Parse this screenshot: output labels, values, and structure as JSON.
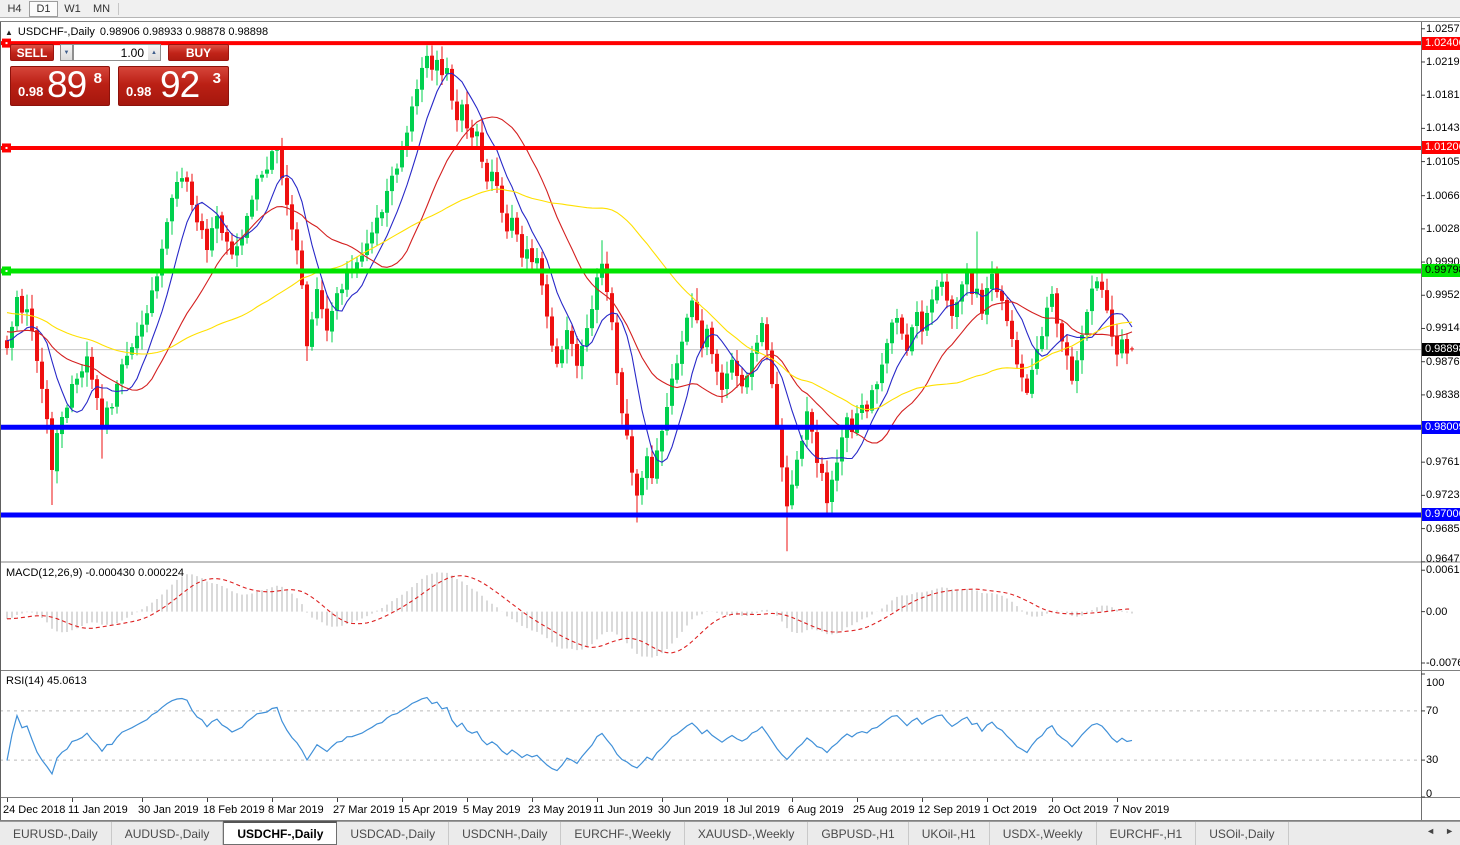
{
  "toolbar": {
    "timeframes": [
      {
        "label": "H4",
        "active": false
      },
      {
        "label": "D1",
        "active": true
      },
      {
        "label": "W1",
        "active": false
      },
      {
        "label": "MN",
        "active": false
      }
    ]
  },
  "title": {
    "collapse_arrow": "▲",
    "symbol": "USDCHF-,Daily",
    "ohlc": "0.98906 0.98933 0.98878 0.98898"
  },
  "trade_panel": {
    "sell_label": "SELL",
    "buy_label": "BUY",
    "volume": "1.00",
    "spin_down": "▼",
    "spin_up": "▲",
    "sell_price": {
      "small": "0.98",
      "big": "89",
      "sup": "8"
    },
    "buy_price": {
      "small": "0.98",
      "big": "92",
      "sup": "3"
    }
  },
  "price_axis": {
    "ticks": [
      "1.02570",
      "1.02190",
      "1.01810",
      "1.01430",
      "1.01050",
      "1.00660",
      "1.00280",
      "0.99900",
      "0.99520",
      "0.99140",
      "0.98760",
      "0.98380",
      "0.98000",
      "0.97610",
      "0.97230",
      "0.96850",
      "0.96470"
    ]
  },
  "macd_panel": {
    "label": "MACD(12,26,9)",
    "values": "-0.000430 0.000224",
    "axis_ticks": [
      {
        "value": 0.00613,
        "text": "0.00613"
      },
      {
        "value": 0.0,
        "text": "0.00"
      },
      {
        "value": -0.00761,
        "text": "-0.00761"
      }
    ]
  },
  "rsi_panel": {
    "label": "RSI(14)",
    "value": "45.0613",
    "axis_ticks": [
      {
        "value": 100,
        "text": "100"
      },
      {
        "value": 70,
        "text": "70"
      },
      {
        "value": 30,
        "text": "30"
      },
      {
        "value": 0,
        "text": "0"
      }
    ]
  },
  "date_axis": {
    "labels": [
      {
        "i": 0,
        "text": "24 Dec 2018"
      },
      {
        "i": 13,
        "text": "11 Jan 2019"
      },
      {
        "i": 27,
        "text": "30 Jan 2019"
      },
      {
        "i": 40,
        "text": "18 Feb 2019"
      },
      {
        "i": 53,
        "text": "8 Mar 2019"
      },
      {
        "i": 66,
        "text": "27 Mar 2019"
      },
      {
        "i": 79,
        "text": "15 Apr 2019"
      },
      {
        "i": 92,
        "text": "5 May 2019"
      },
      {
        "i": 105,
        "text": "23 May 2019"
      },
      {
        "i": 118,
        "text": "11 Jun 2019"
      },
      {
        "i": 131,
        "text": "30 Jun 2019"
      },
      {
        "i": 144,
        "text": "18 Jul 2019"
      },
      {
        "i": 157,
        "text": "6 Aug 2019"
      },
      {
        "i": 170,
        "text": "25 Aug 2019"
      },
      {
        "i": 183,
        "text": "12 Sep 2019"
      },
      {
        "i": 196,
        "text": "1 Oct 2019"
      },
      {
        "i": 209,
        "text": "20 Oct 2019"
      },
      {
        "i": 222,
        "text": "7 Nov 2019"
      }
    ]
  },
  "tabs": {
    "items": [
      {
        "label": "EURUSD-,Daily",
        "active": false
      },
      {
        "label": "AUDUSD-,Daily",
        "active": false
      },
      {
        "label": "USDCHF-,Daily",
        "active": true
      },
      {
        "label": "USDCAD-,Daily",
        "active": false
      },
      {
        "label": "USDCNH-,Daily",
        "active": false
      },
      {
        "label": "EURCHF-,Weekly",
        "active": false
      },
      {
        "label": "XAUUSD-,Weekly",
        "active": false
      },
      {
        "label": "GBPUSD-,H1",
        "active": false
      },
      {
        "label": "UKOil-,H1",
        "active": false
      },
      {
        "label": "USDX-,Weekly",
        "active": false
      },
      {
        "label": "EURCHF-,H1",
        "active": false
      },
      {
        "label": "USOil-,Daily",
        "active": false
      }
    ],
    "scroll_left": "◄",
    "scroll_right": "►"
  },
  "colors": {
    "bull": "#00d04e",
    "bear": "#ee1010",
    "ma_fast": "#2828c8",
    "ma_mid": "#d42020",
    "ma_slow": "#ffe000",
    "level_red": "#ff0000",
    "level_green": "#00e400",
    "level_blue": "#0000ff",
    "current_line": "#c8c8c8",
    "current_badge_bg": "#000000",
    "macd_bar": "#b4b4b4",
    "macd_signal": "#dd2222",
    "rsi_line": "#4090d8",
    "rsi_dash": "#bbbbbb"
  },
  "chart_data": {
    "type": "candlestick",
    "symbol": "USDCHF",
    "timeframe": "Daily",
    "bars": 226,
    "y_range": [
      0.96479,
      1.02636
    ],
    "current_price": {
      "value": 0.98898,
      "label": "0.98898"
    },
    "last_candle": {
      "open": 0.98906,
      "high": 0.98933,
      "low": 0.98878,
      "close": 0.98898
    },
    "levels": [
      {
        "value": 1.02406,
        "label": "1.02406",
        "color": "#ff0000",
        "role": "resistance",
        "width": 4,
        "marker": true,
        "text": "#ffffff"
      },
      {
        "value": 1.01206,
        "label": "1.01206",
        "color": "#ff0000",
        "role": "resistance",
        "width": 4,
        "marker": true,
        "text": "#ffffff"
      },
      {
        "value": 0.99798,
        "label": "0.99798",
        "color": "#00e400",
        "role": "pivot",
        "width": 5,
        "marker": true,
        "text": "#000000"
      },
      {
        "value": 0.98009,
        "label": "0.98009",
        "color": "#0000ff",
        "role": "support",
        "width": 5,
        "marker": false,
        "text": "#ffffff"
      },
      {
        "value": 0.97006,
        "label": "0.97006",
        "color": "#0000ff",
        "role": "support",
        "width": 5,
        "marker": false,
        "text": "#ffffff"
      }
    ],
    "moving_averages": [
      {
        "period": 8,
        "color": "#2828c8"
      },
      {
        "period": 21,
        "color": "#d42020"
      },
      {
        "period": 50,
        "color": "#ffe000"
      }
    ],
    "macd": {
      "fast": 12,
      "slow": 26,
      "signal": 9,
      "value": -0.00043,
      "signal_value": 0.000224,
      "scale_top": 0.0072,
      "scale_bottom": -0.0085
    },
    "rsi": {
      "period": 14,
      "value": 45.0613,
      "levels": [
        70,
        30
      ]
    },
    "close_anchors": [
      [
        0,
        0.989
      ],
      [
        2,
        0.9945
      ],
      [
        4,
        0.9928
      ],
      [
        6,
        0.988
      ],
      [
        8,
        0.9808
      ],
      [
        9,
        0.9752
      ],
      [
        10,
        0.9788
      ],
      [
        12,
        0.983
      ],
      [
        14,
        0.9862
      ],
      [
        16,
        0.9878
      ],
      [
        18,
        0.9838
      ],
      [
        19,
        0.98
      ],
      [
        21,
        0.9832
      ],
      [
        23,
        0.9868
      ],
      [
        25,
        0.9898
      ],
      [
        27,
        0.9918
      ],
      [
        29,
        0.9952
      ],
      [
        31,
        1.0
      ],
      [
        33,
        1.006
      ],
      [
        35,
        1.0092
      ],
      [
        37,
        1.0058
      ],
      [
        39,
        1.0022
      ],
      [
        40,
        1.0005
      ],
      [
        42,
        1.0038
      ],
      [
        44,
        1.001
      ],
      [
        45,
        0.9992
      ],
      [
        47,
        1.0025
      ],
      [
        49,
        1.006
      ],
      [
        51,
        1.0095
      ],
      [
        53,
        1.0112
      ],
      [
        54,
        1.0118
      ],
      [
        55,
        1.0088
      ],
      [
        56,
        1.0058
      ],
      [
        57,
        1.0028
      ],
      [
        58,
        1.0
      ],
      [
        59,
        0.9958
      ],
      [
        60,
        0.9898
      ],
      [
        61,
        0.9928
      ],
      [
        62,
        0.9955
      ],
      [
        63,
        0.9932
      ],
      [
        64,
        0.9908
      ],
      [
        65,
        0.993
      ],
      [
        66,
        0.995
      ],
      [
        68,
        0.9975
      ],
      [
        70,
        0.9992
      ],
      [
        72,
        1.0012
      ],
      [
        74,
        1.004
      ],
      [
        76,
        1.0068
      ],
      [
        78,
        1.0098
      ],
      [
        79,
        1.012
      ],
      [
        80,
        1.0142
      ],
      [
        81,
        1.0166
      ],
      [
        82,
        1.019
      ],
      [
        83,
        1.0212
      ],
      [
        84,
        1.0226
      ],
      [
        85,
        1.0205
      ],
      [
        86,
        1.022
      ],
      [
        87,
        1.0196
      ],
      [
        88,
        1.021
      ],
      [
        89,
        1.0182
      ],
      [
        90,
        1.0158
      ],
      [
        91,
        1.0172
      ],
      [
        92,
        1.0148
      ],
      [
        93,
        1.0125
      ],
      [
        94,
        1.014
      ],
      [
        95,
        1.0112
      ],
      [
        96,
        1.0088
      ],
      [
        97,
        1.01
      ],
      [
        98,
        1.0072
      ],
      [
        99,
        1.0048
      ],
      [
        100,
        1.0025
      ],
      [
        101,
        1.0042
      ],
      [
        102,
        1.0018
      ],
      [
        103,
        0.9998
      ],
      [
        104,
        1.0012
      ],
      [
        105,
        0.9988
      ],
      [
        106,
        0.9998
      ],
      [
        107,
        0.9965
      ],
      [
        108,
        0.993
      ],
      [
        109,
        0.9895
      ],
      [
        110,
        0.9868
      ],
      [
        111,
        0.989
      ],
      [
        112,
        0.9912
      ],
      [
        113,
        0.9892
      ],
      [
        114,
        0.987
      ],
      [
        115,
        0.989
      ],
      [
        116,
        0.9915
      ],
      [
        117,
        0.9942
      ],
      [
        118,
        0.997
      ],
      [
        119,
        0.9996
      ],
      [
        120,
        0.9958
      ],
      [
        121,
        0.9915
      ],
      [
        122,
        0.987
      ],
      [
        123,
        0.9825
      ],
      [
        124,
        0.9785
      ],
      [
        125,
        0.9748
      ],
      [
        126,
        0.972
      ],
      [
        127,
        0.9748
      ],
      [
        128,
        0.9775
      ],
      [
        129,
        0.975
      ],
      [
        130,
        0.9776
      ],
      [
        132,
        0.9828
      ],
      [
        134,
        0.988
      ],
      [
        136,
        0.9932
      ],
      [
        137,
        0.9946
      ],
      [
        138,
        0.992
      ],
      [
        139,
        0.9895
      ],
      [
        140,
        0.9906
      ],
      [
        141,
        0.9886
      ],
      [
        142,
        0.9866
      ],
      [
        143,
        0.9848
      ],
      [
        144,
        0.9866
      ],
      [
        145,
        0.9884
      ],
      [
        146,
        0.9866
      ],
      [
        147,
        0.9844
      ],
      [
        148,
        0.986
      ],
      [
        150,
        0.99
      ],
      [
        151,
        0.992
      ],
      [
        152,
        0.9888
      ],
      [
        153,
        0.9846
      ],
      [
        154,
        0.9798
      ],
      [
        155,
        0.9748
      ],
      [
        156,
        0.9706
      ],
      [
        157,
        0.9736
      ],
      [
        158,
        0.9764
      ],
      [
        159,
        0.9792
      ],
      [
        160,
        0.9814
      ],
      [
        161,
        0.979
      ],
      [
        162,
        0.9766
      ],
      [
        163,
        0.9742
      ],
      [
        164,
        0.9718
      ],
      [
        165,
        0.974
      ],
      [
        166,
        0.9764
      ],
      [
        167,
        0.9788
      ],
      [
        168,
        0.981
      ],
      [
        169,
        0.9792
      ],
      [
        170,
        0.9812
      ],
      [
        171,
        0.983
      ],
      [
        172,
        0.9814
      ],
      [
        173,
        0.9836
      ],
      [
        174,
        0.9858
      ],
      [
        175,
        0.9878
      ],
      [
        176,
        0.9898
      ],
      [
        177,
        0.9916
      ],
      [
        178,
        0.9932
      ],
      [
        179,
        0.9912
      ],
      [
        180,
        0.9892
      ],
      [
        181,
        0.991
      ],
      [
        182,
        0.9928
      ],
      [
        183,
        0.9908
      ],
      [
        184,
        0.9925
      ],
      [
        185,
        0.994
      ],
      [
        186,
        0.9956
      ],
      [
        187,
        0.997
      ],
      [
        188,
        0.9948
      ],
      [
        189,
        0.9924
      ],
      [
        190,
        0.9944
      ],
      [
        191,
        0.996
      ],
      [
        192,
        0.9974
      ],
      [
        193,
        0.9956
      ],
      [
        194,
        0.9966
      ],
      [
        195,
        0.9932
      ],
      [
        196,
        0.9956
      ],
      [
        197,
        0.997
      ],
      [
        198,
        0.996
      ],
      [
        199,
        0.9942
      ],
      [
        200,
        0.9925
      ],
      [
        201,
        0.9902
      ],
      [
        202,
        0.9876
      ],
      [
        203,
        0.9854
      ],
      [
        204,
        0.984
      ],
      [
        205,
        0.9862
      ],
      [
        206,
        0.9885
      ],
      [
        207,
        0.9908
      ],
      [
        208,
        0.993
      ],
      [
        209,
        0.9946
      ],
      [
        210,
        0.9926
      ],
      [
        211,
        0.99
      ],
      [
        212,
        0.9876
      ],
      [
        213,
        0.986
      ],
      [
        214,
        0.9884
      ],
      [
        215,
        0.9906
      ],
      [
        216,
        0.993
      ],
      [
        217,
        0.9952
      ],
      [
        218,
        0.9972
      ],
      [
        219,
        0.9952
      ],
      [
        220,
        0.993
      ],
      [
        221,
        0.9906
      ],
      [
        222,
        0.9886
      ],
      [
        223,
        0.9898
      ],
      [
        224,
        0.9892
      ],
      [
        225,
        0.98898
      ]
    ],
    "wick_overrides": {
      "9": [
        null,
        0.9712
      ],
      "19": [
        null,
        0.9765
      ],
      "35": [
        1.0098,
        null
      ],
      "53": [
        1.0121,
        null
      ],
      "54": [
        1.0121,
        null
      ],
      "84": [
        1.0238,
        null
      ],
      "86": [
        1.0232,
        null
      ],
      "119": [
        1.0015,
        null
      ],
      "126": [
        null,
        0.9692
      ],
      "156": [
        null,
        0.9659
      ],
      "164": [
        null,
        0.97
      ],
      "194": [
        1.0025,
        null
      ],
      "204": [
        null,
        0.9838
      ]
    }
  }
}
